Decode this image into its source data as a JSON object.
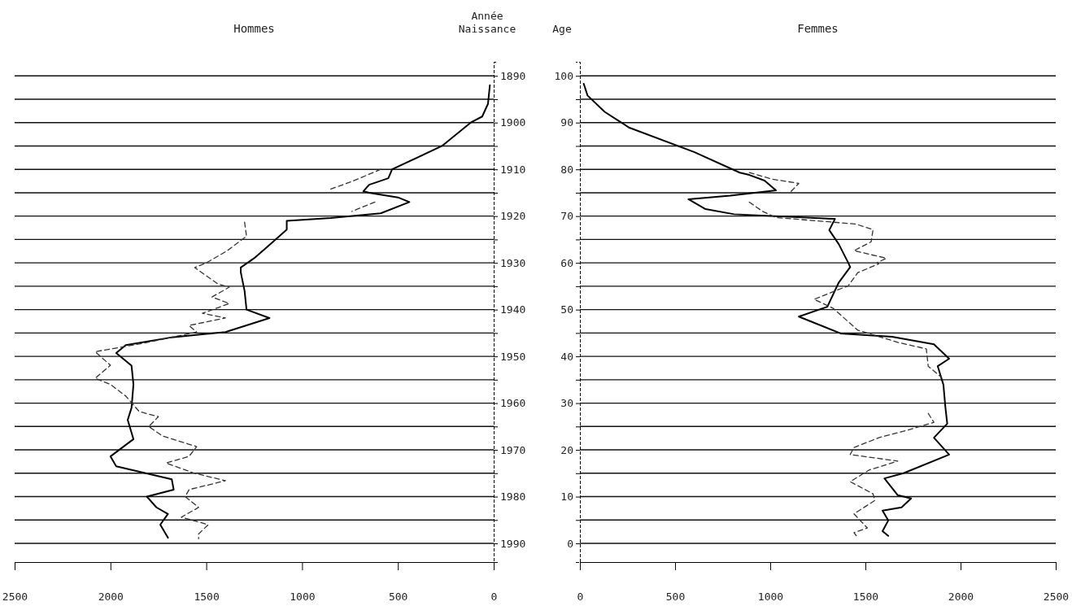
{
  "chart_data": [
    {
      "type": "line",
      "orientation": "horizontal",
      "title": "Hommes",
      "ylabel": "Année Naissance",
      "xlim": [
        2500,
        0
      ],
      "xticks": [
        2500,
        2000,
        1500,
        1000,
        500,
        0
      ],
      "ylim": [
        1994,
        1887
      ],
      "yticks": [
        1890,
        {
          "value": 1895,
          "label": null
        },
        1900,
        {
          "value": 1905,
          "label": null
        },
        1910,
        {
          "value": 1915,
          "label": null
        },
        1920,
        {
          "value": 1925,
          "label": null
        },
        1930,
        {
          "value": 1935,
          "label": null
        },
        1940,
        {
          "value": 1945,
          "label": null
        },
        1950,
        {
          "value": 1955,
          "label": null
        },
        1960,
        {
          "value": 1965,
          "label": null
        },
        1970,
        {
          "value": 1975,
          "label": null
        },
        1980,
        {
          "value": 1985,
          "label": null
        },
        1990
      ],
      "grid": "y",
      "series": [
        {
          "color": "#000000",
          "line_style": "solid",
          "x": [
            1892,
            1896,
            1898.7,
            1900,
            1905,
            1910,
            1911.9,
            1913.3,
            1914.7,
            1915,
            1916,
            1917,
            1919.4,
            1920.4,
            1921,
            1922.9,
            1925.8,
            1929,
            1931,
            1932,
            1936,
            1940,
            1941.8,
            1944.8,
            1946,
            1947.6,
            1949.3,
            1952,
            1956,
            1961,
            1963.6,
            1967.7,
            1971.4,
            1973.5,
            1976.3,
            1978.5,
            1980,
            1982.3,
            1983.7,
            1986,
            1988.8
          ],
          "values": [
            20,
            30,
            60,
            120,
            270,
            530,
            550,
            650,
            680,
            650,
            500,
            440,
            590,
            850,
            1080,
            1080,
            1160,
            1250,
            1320,
            1320,
            1300,
            1290,
            1170,
            1400,
            1690,
            1920,
            1970,
            1890,
            1880,
            1890,
            1910,
            1880,
            2000,
            1970,
            1680,
            1670,
            1810,
            1760,
            1700,
            1740,
            1700
          ]
        },
        {
          "color": "#333333",
          "line_style": "dashed",
          "x": [
            1910,
            1912.6,
            1914.2,
            null,
            1917,
            1919,
            null,
            1921.3,
            1924.3,
            1927.4,
            1930,
            1931,
            1931.6,
            1934.5,
            1935.2,
            1937.3,
            1938.7,
            1940.8,
            1941.8,
            1943.4,
            1944.8,
            1947.2,
            1949,
            1951.9,
            1954.7,
            1956,
            1958.5,
            1961.8,
            1962.9,
            1965,
            1967,
            1969.3,
            1971.4,
            1972.8,
            1974.9,
            1976.6,
            1978.5,
            1980,
            1982.3,
            1984.4,
            1986,
            1988,
            1989
          ],
          "values": [
            590,
            740,
            850,
            null,
            620,
            740,
            null,
            1300,
            1290,
            1390,
            1500,
            1560,
            1540,
            1440,
            1380,
            1470,
            1380,
            1520,
            1400,
            1590,
            1550,
            1830,
            2080,
            2000,
            2080,
            2000,
            1920,
            1850,
            1750,
            1800,
            1730,
            1550,
            1590,
            1710,
            1570,
            1400,
            1590,
            1610,
            1540,
            1630,
            1490,
            1540,
            1540
          ]
        }
      ]
    },
    {
      "type": "line",
      "orientation": "horizontal",
      "title": "Femmes",
      "ylabel": "Age",
      "xlim": [
        0,
        2500
      ],
      "xticks": [
        0,
        500,
        1000,
        1500,
        2000,
        2500
      ],
      "ylim": [
        -4,
        103
      ],
      "yticks": [
        0,
        {
          "value": 5,
          "label": null
        },
        10,
        {
          "value": 15,
          "label": null
        },
        20,
        {
          "value": 25,
          "label": null
        },
        30,
        {
          "value": 35,
          "label": null
        },
        40,
        {
          "value": 45,
          "label": null
        },
        50,
        {
          "value": 55,
          "label": null
        },
        60,
        {
          "value": 65,
          "label": null
        },
        70,
        {
          "value": 75,
          "label": null
        },
        80,
        {
          "value": 85,
          "label": null
        },
        90,
        {
          "value": 95,
          "label": null
        },
        100
      ],
      "grid": "y",
      "series": [
        {
          "color": "#000000",
          "line_style": "solid",
          "x": [
            98.3,
            95.8,
            92.3,
            88.9,
            83.7,
            79.3,
            78.8,
            77.6,
            75.5,
            74.4,
            73.6,
            71.5,
            70.4,
            69.4,
            67,
            64,
            60,
            59.1,
            55.8,
            50.6,
            48.5,
            44.9,
            44.2,
            42.6,
            39.5,
            37.9,
            33.9,
            29.2,
            25.6,
            22.6,
            19,
            15,
            13.9,
            10.3,
            9.6,
            7.7,
            7,
            4.9,
            2.6,
            1.6
          ],
          "values": [
            20,
            40,
            130,
            260,
            600,
            840,
            890,
            970,
            1030,
            790,
            570,
            660,
            810,
            1340,
            1310,
            1360,
            1410,
            1420,
            1360,
            1300,
            1150,
            1370,
            1640,
            1860,
            1940,
            1880,
            1910,
            1920,
            1930,
            1860,
            1940,
            1700,
            1600,
            1670,
            1740,
            1690,
            1590,
            1620,
            1590,
            1620
          ]
        },
        {
          "color": "#333333",
          "line_style": "dashed",
          "x": [
            79.3,
            77.9,
            77,
            75.3,
            null,
            73,
            71,
            69.7,
            68.3,
            67.1,
            64.5,
            62.6,
            61,
            60,
            59.8,
            57.9,
            55.1,
            52.2,
            50.3,
            45.6,
            43,
            41.6,
            37.9,
            35.5,
            null,
            27.8,
            25.9,
            24.2,
            22.6,
            20.5,
            19,
            17.6,
            15.7,
            13.2,
            10.6,
            9.2,
            6.3,
            3.3,
            2.3,
            1.2
          ],
          "values": [
            890,
            1010,
            1150,
            1110,
            null,
            890,
            960,
            1030,
            1450,
            1540,
            1530,
            1440,
            1610,
            1560,
            1570,
            1460,
            1410,
            1230,
            1330,
            1460,
            1670,
            1820,
            1830,
            1900,
            null,
            1830,
            1860,
            1720,
            1570,
            1440,
            1420,
            1670,
            1520,
            1420,
            1540,
            1550,
            1440,
            1510,
            1440,
            1460
          ]
        }
      ]
    }
  ]
}
